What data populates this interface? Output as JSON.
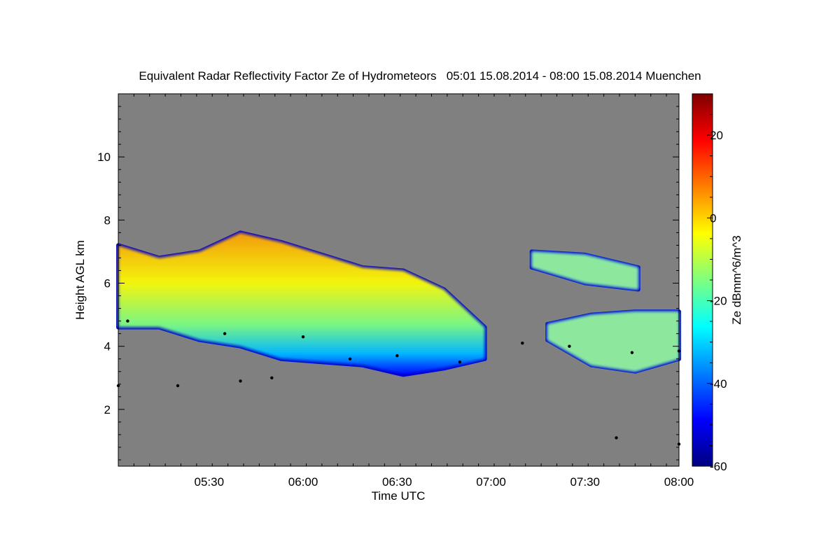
{
  "chart_data": {
    "type": "heatmap",
    "title": "Equivalent Radar Reflectivity Factor Ze of Hydrometeors   05:01 15.08.2014 - 08:00 15.08.2014 Muenchen",
    "xlabel": "Time UTC",
    "ylabel": "Height AGL km",
    "colorbar_label": "Ze dBmm^6/m^3",
    "x_range": [
      "05:01",
      "08:00"
    ],
    "x_ticks": [
      "05:30",
      "06:00",
      "06:30",
      "07:00",
      "07:30",
      "08:00"
    ],
    "ylim": [
      0.2,
      12.0
    ],
    "y_ticks": [
      "2",
      "4",
      "6",
      "8",
      "10"
    ],
    "colorbar_range": [
      -60,
      30
    ],
    "colorbar_ticks": [
      "-60",
      "-40",
      "-20",
      "0",
      "20"
    ],
    "background_color": "#808080",
    "colormap": [
      "#00007f",
      "#0000ff",
      "#007fff",
      "#00ffff",
      "#7fff7f",
      "#ffff00",
      "#ff7f00",
      "#ff0000",
      "#7f0000"
    ],
    "cloud_layers": [
      {
        "name": "main",
        "time_start": "05:01",
        "time_end": "06:58",
        "base_km": [
          4.6,
          4.6,
          4.2,
          4.0,
          3.6,
          3.5,
          3.4,
          3.1,
          3.3,
          3.6
        ],
        "top_km": [
          7.2,
          6.8,
          7.0,
          7.6,
          7.3,
          6.9,
          6.5,
          6.4,
          5.8,
          4.6
        ],
        "peak_dBZ": 0
      },
      {
        "name": "upper-right",
        "time_start": "07:13",
        "time_end": "07:47",
        "base_km": [
          6.5,
          6.0,
          5.8
        ],
        "top_km": [
          7.0,
          6.9,
          6.5
        ],
        "peak_dBZ": -20
      },
      {
        "name": "lower-right",
        "time_start": "07:18",
        "time_end": "08:00",
        "base_km": [
          4.2,
          3.4,
          3.2,
          3.6
        ],
        "top_km": [
          4.7,
          5.0,
          5.1,
          5.1
        ],
        "peak_dBZ": -10
      }
    ],
    "cloud_base_detection_km": [
      {
        "time": "05:01",
        "height": 2.75
      },
      {
        "time": "05:20",
        "height": 2.75
      },
      {
        "time": "05:40",
        "height": 2.9
      },
      {
        "time": "05:50",
        "height": 3.0
      },
      {
        "time": "05:04",
        "height": 4.8
      },
      {
        "time": "05:35",
        "height": 4.4
      },
      {
        "time": "06:00",
        "height": 4.3
      },
      {
        "time": "06:15",
        "height": 3.6
      },
      {
        "time": "06:30",
        "height": 3.7
      },
      {
        "time": "06:50",
        "height": 3.5
      },
      {
        "time": "07:10",
        "height": 4.1
      },
      {
        "time": "07:25",
        "height": 4.0
      },
      {
        "time": "07:45",
        "height": 3.8
      },
      {
        "time": "08:00",
        "height": 3.85
      },
      {
        "time": "07:40",
        "height": 1.1
      },
      {
        "time": "08:00",
        "height": 0.9
      }
    ]
  }
}
